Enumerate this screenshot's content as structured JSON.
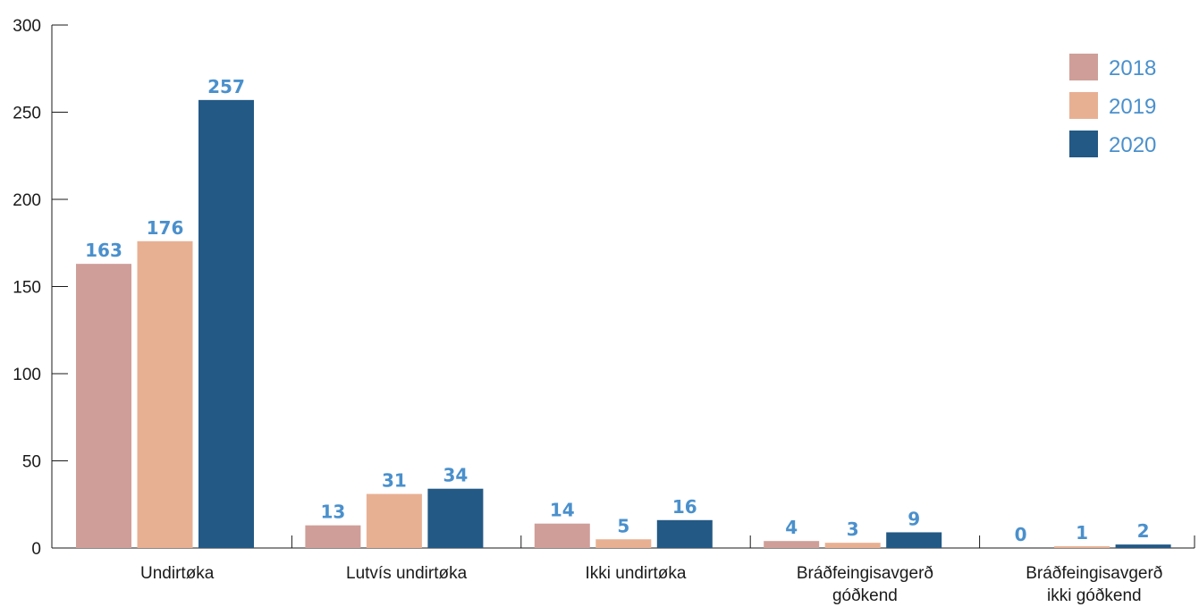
{
  "chart_data": {
    "type": "bar",
    "categories": [
      [
        "Undirtøka"
      ],
      [
        "Lutvís undirtøka"
      ],
      [
        "Ikki undirtøka"
      ],
      [
        "Bráðfeingisavgerð",
        "góðkend"
      ],
      [
        "Bráðfeingisavgerð",
        "ikki góðkend"
      ]
    ],
    "series": [
      {
        "name": "2018",
        "color": "#cf9e99",
        "values": [
          163,
          13,
          14,
          4,
          0
        ]
      },
      {
        "name": "2019",
        "color": "#e8b093",
        "values": [
          176,
          31,
          5,
          3,
          1
        ]
      },
      {
        "name": "2020",
        "color": "#235985",
        "values": [
          257,
          34,
          16,
          9,
          2
        ]
      }
    ],
    "title": "",
    "xlabel": "",
    "ylabel": "",
    "ylim": [
      0,
      300
    ],
    "yticks": [
      0,
      50,
      100,
      150,
      200,
      250,
      300
    ],
    "grid": false,
    "legend_position": "top-right",
    "label_color": "#4a90cc"
  }
}
